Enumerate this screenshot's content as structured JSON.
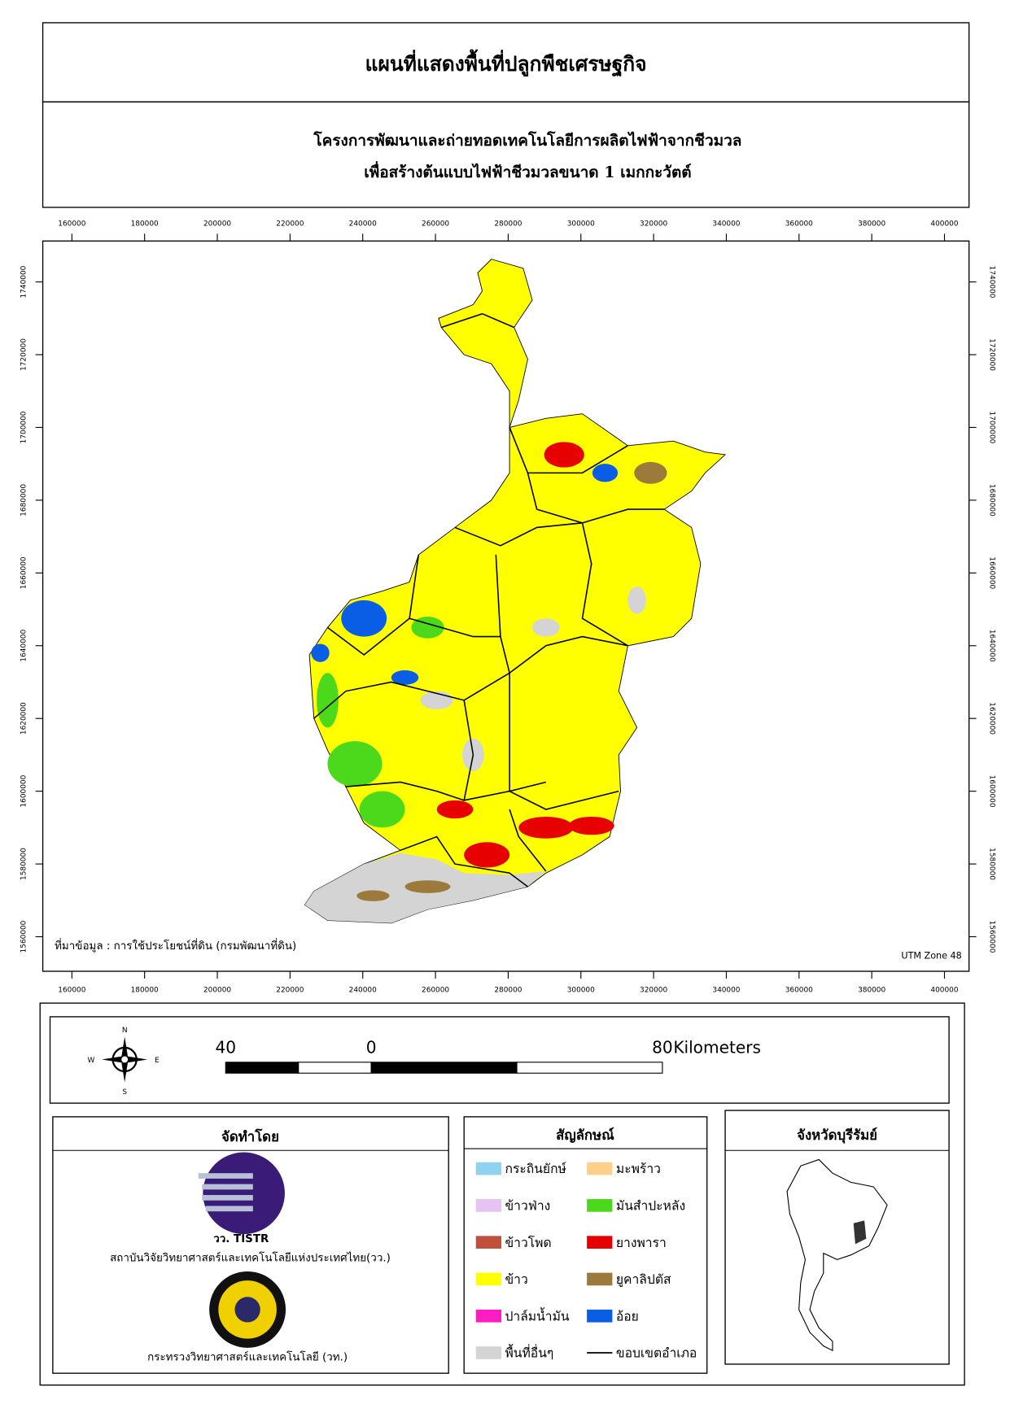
{
  "header": {
    "title": "แผนที่แสดงพื้นที่ปลูกพืชเศรษฐกิจ",
    "subtitle_lines": [
      "โครงการพัฒนาและถ่ายทอดเทคโนโลยีการผลิตไฟฟ้าจากชีวมวล",
      "เพื่อสร้างต้นแบบไฟฟ้าชีวมวลขนาด 1 เมกกะวัตต์"
    ]
  },
  "map": {
    "xticks": [
      160000,
      180000,
      200000,
      220000,
      240000,
      260000,
      280000,
      300000,
      320000,
      340000,
      360000,
      380000,
      400000
    ],
    "yticks": [
      1560000,
      1580000,
      1600000,
      1620000,
      1640000,
      1660000,
      1680000,
      1700000,
      1720000,
      1740000
    ],
    "source": "ที่มาข้อมูล : การใช้ประโยชน์ที่ดิน  (กรมพัฒนาที่ดิน)",
    "zone": "UTM Zone 48"
  },
  "north_arrow": {
    "n": "N",
    "e": "E",
    "s": "S",
    "w": "W"
  },
  "scale_bar": {
    "labels": [
      "40",
      "0",
      "80"
    ],
    "unit": "Kilometers"
  },
  "producer": {
    "title": "จัดทำโดย",
    "logo_text": "วว. TISTR",
    "org1": "สถาบันวิจัยวิทยาศาสตร์และเทคโนโลยีแห่งประเทศไทย(วว.)",
    "org2": "กระทรวงวิทยาศาสตร์และเทคโนโลยี (วท.)"
  },
  "legend": {
    "title": "สัญลักษณ์",
    "items": [
      {
        "label": "กระถินยักษ์",
        "color": "#8fd3f0"
      },
      {
        "label": "มะพร้าว",
        "color": "#ffd08a"
      },
      {
        "label": "ข้าวฟ่าง",
        "color": "#e6c3f0"
      },
      {
        "label": "มันสำปะหลัง",
        "color": "#4cd91c"
      },
      {
        "label": "ข้าวโพด",
        "color": "#c0503c"
      },
      {
        "label": "ยางพารา",
        "color": "#e60000"
      },
      {
        "label": "ข้าว",
        "color": "#ffff00"
      },
      {
        "label": "ยูคาลิปตัส",
        "color": "#9c7a3c"
      },
      {
        "label": "ปาล์มน้ำมัน",
        "color": "#ff1cc4"
      },
      {
        "label": "อ้อย",
        "color": "#0a5ee6"
      },
      {
        "label": "พื้นที่อื่นๆ",
        "color": "#d4d4d4"
      },
      {
        "label": "ขอบเขตอำเภอ",
        "color": "#000000",
        "symbol": "line"
      }
    ]
  },
  "inset": {
    "title": "จังหวัดบุรีรัมย์"
  }
}
